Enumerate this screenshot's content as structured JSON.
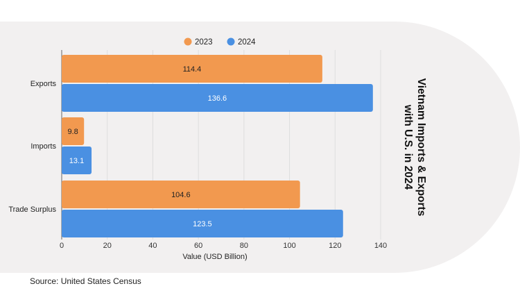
{
  "chart_data": {
    "type": "bar",
    "orientation": "horizontal",
    "title_lines": [
      "Vietnam Imports & Exports",
      "with U.S. in 2024"
    ],
    "xlabel": "Value (USD Billion)",
    "ylabel": "",
    "categories": [
      "Exports",
      "Imports",
      "Trade Surplus"
    ],
    "series": [
      {
        "name": "2023",
        "color": "#f2994f",
        "values": [
          114.4,
          9.8,
          104.6
        ]
      },
      {
        "name": "2024",
        "color": "#4a90e2",
        "values": [
          136.6,
          13.1,
          123.5
        ]
      }
    ],
    "xlim": [
      0,
      140
    ],
    "xticks": [
      0,
      20,
      40,
      60,
      80,
      100,
      120,
      140
    ],
    "grid": true,
    "legend_position": "top-center"
  },
  "source": "Source: United States Census"
}
